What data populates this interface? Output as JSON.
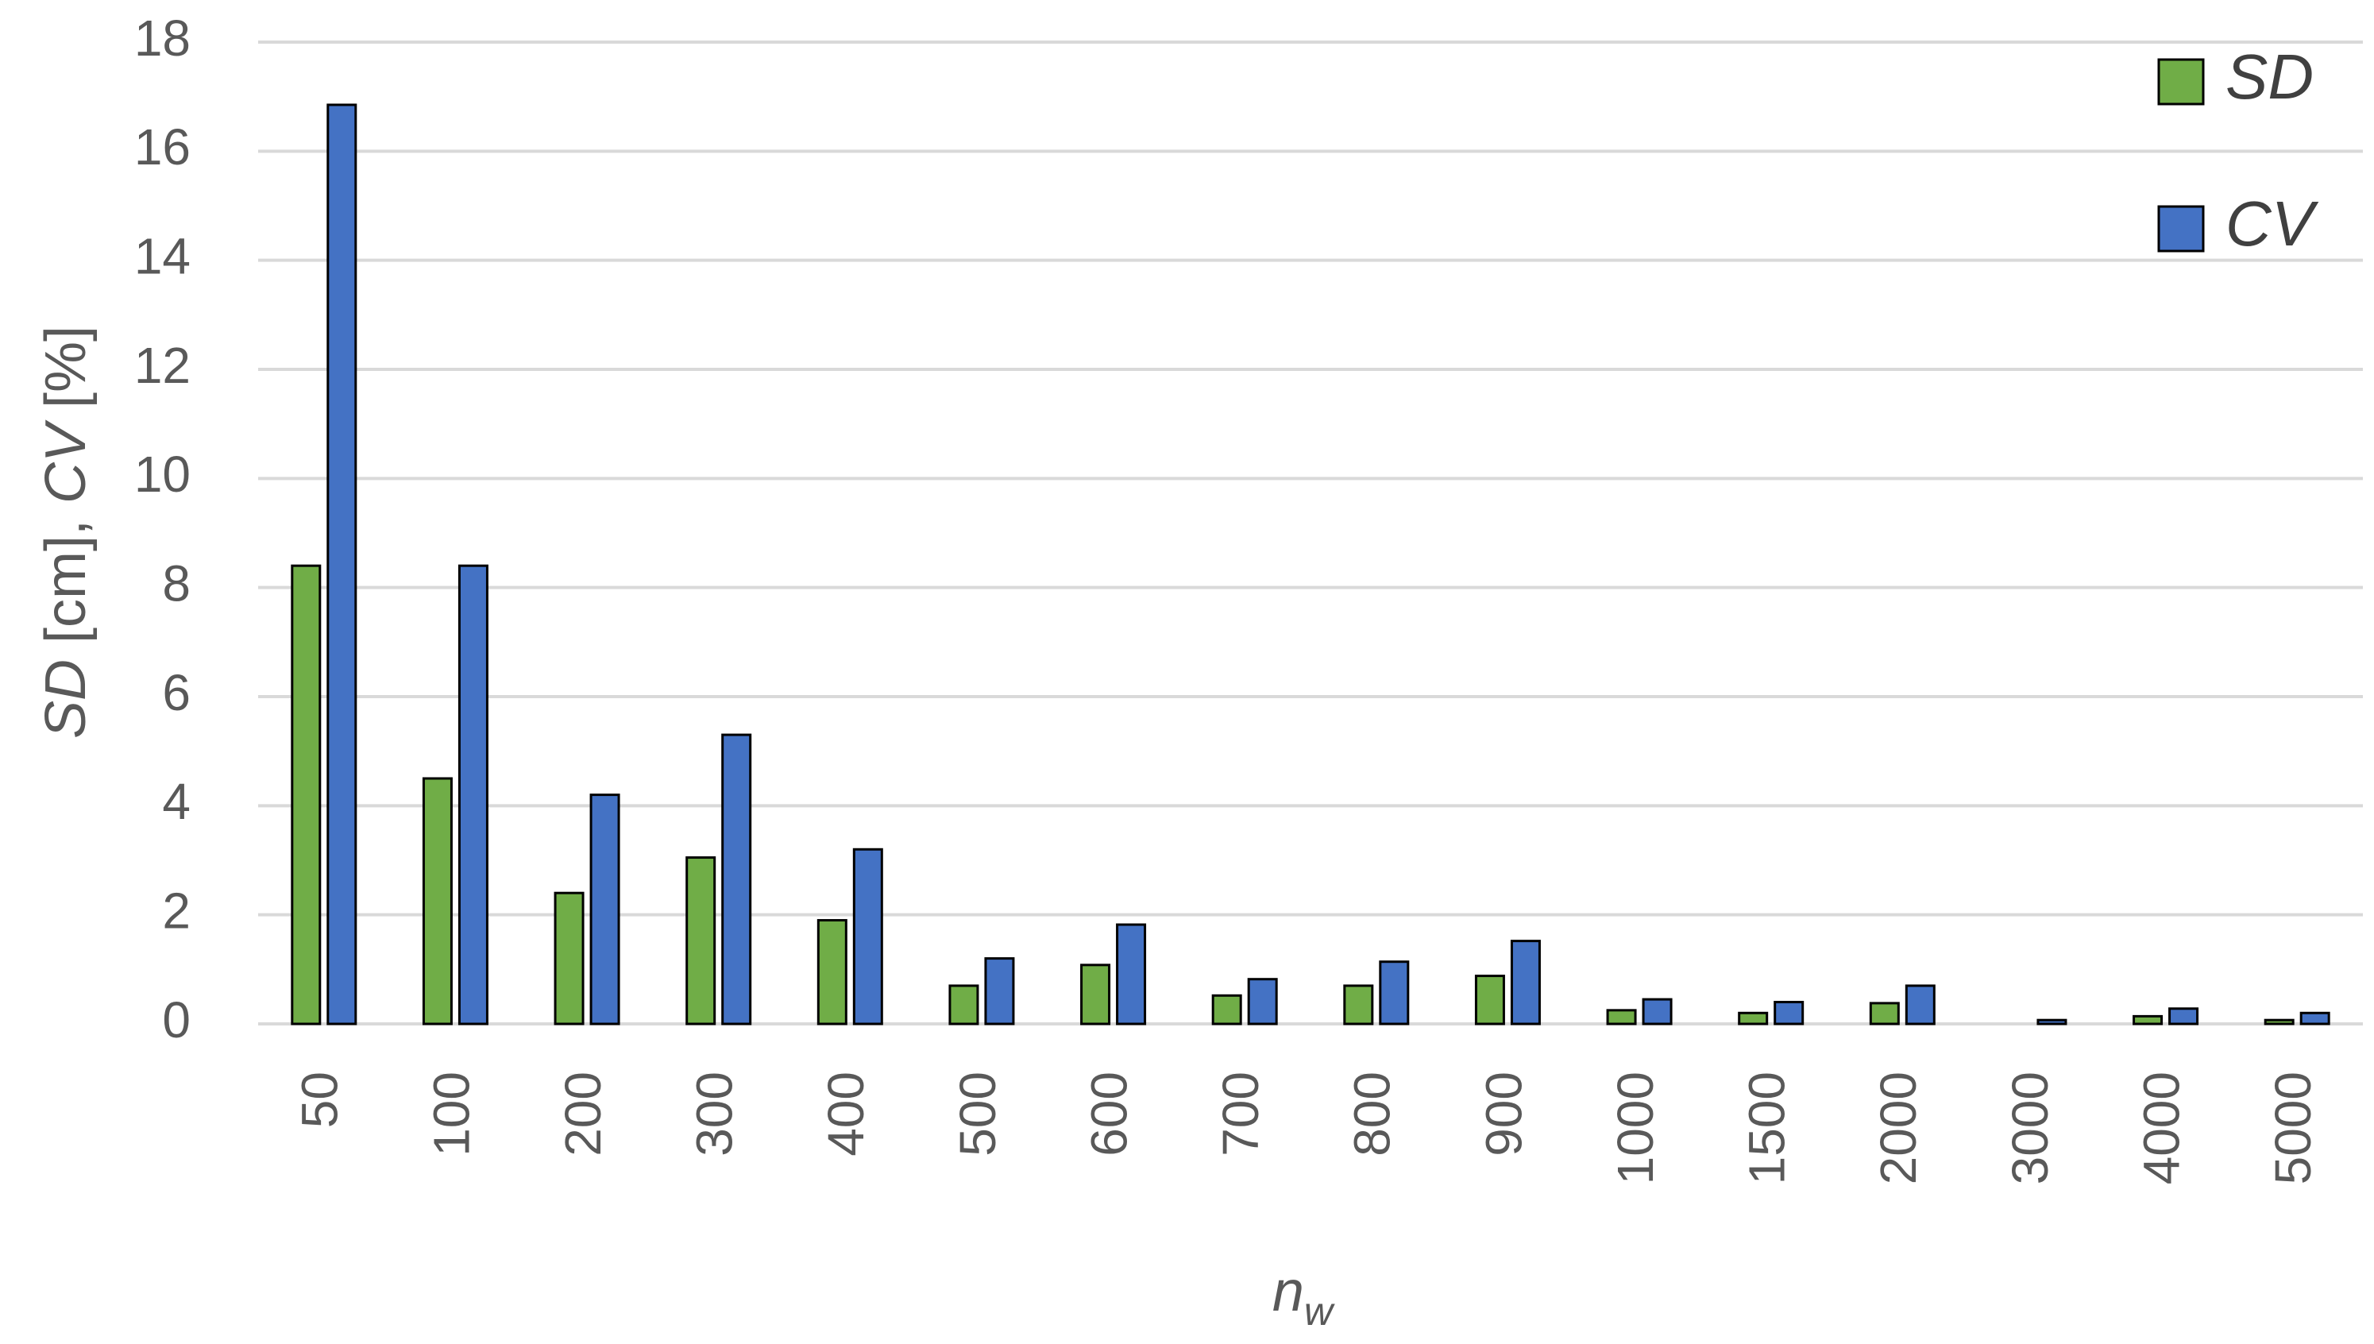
{
  "chart_data": {
    "type": "bar",
    "categories": [
      "50",
      "100",
      "200",
      "300",
      "400",
      "500",
      "600",
      "700",
      "800",
      "900",
      "1000",
      "1500",
      "2000",
      "3000",
      "4000",
      "5000"
    ],
    "series": [
      {
        "name": "SD",
        "color": "#70ad47",
        "values": [
          8.4,
          4.5,
          2.4,
          3.05,
          1.9,
          0.7,
          1.08,
          0.52,
          0.7,
          0.88,
          0.25,
          0.2,
          0.38,
          0.0,
          0.14,
          0.07
        ]
      },
      {
        "name": "CV",
        "color": "#4472c4",
        "values": [
          16.85,
          8.4,
          4.2,
          5.3,
          3.2,
          1.2,
          1.82,
          0.82,
          1.14,
          1.52,
          0.45,
          0.4,
          0.7,
          0.07,
          0.28,
          0.2
        ]
      }
    ],
    "xlabel": {
      "main": "n",
      "sub": "w"
    },
    "ylabel": {
      "italic_1": "SD",
      "plain_1": " [cm], ",
      "italic_2": "CV",
      "plain_2": " [%]"
    },
    "ylim": [
      0,
      18
    ],
    "yticks": [
      "0",
      "2",
      "4",
      "6",
      "8",
      "10",
      "12",
      "14",
      "16",
      "18"
    ],
    "grid": true,
    "legend_position": "top-right",
    "gridline_color": "#d9d9d9",
    "text_color": "#595959"
  }
}
